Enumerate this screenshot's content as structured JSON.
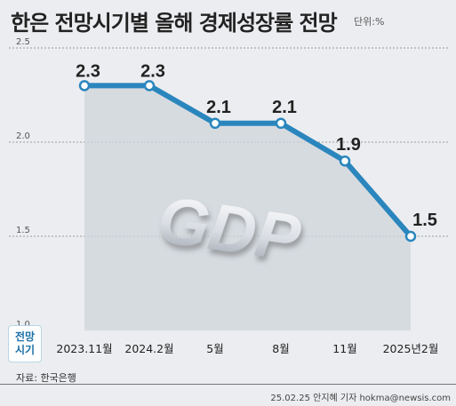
{
  "title": "한은 전망시기별 올해 경제성장률 전망",
  "unit_label": "단위:%",
  "period_label": [
    "전망",
    "시기"
  ],
  "source": "자료: 한국은행",
  "credit": "25.02.25 안지혜 기자 hokma@newsis.com",
  "watermark": "GDP",
  "colors": {
    "line": "#2a86bd",
    "area": "#cfd4db",
    "marker_fill": "#ffffff"
  },
  "chart_data": {
    "type": "area",
    "categories": [
      "2023.11월",
      "2024.2월",
      "5월",
      "8월",
      "11월",
      "2025년2월"
    ],
    "values": [
      2.3,
      2.3,
      2.1,
      2.1,
      1.9,
      1.5
    ],
    "value_labels": [
      "2.3",
      "2.3",
      "2.1",
      "2.1",
      "1.9",
      "1.5"
    ],
    "y_ticks": [
      "2.5",
      "2.0",
      "1.5",
      "1.0"
    ],
    "ylim": [
      1.0,
      2.5
    ],
    "grid": true
  }
}
